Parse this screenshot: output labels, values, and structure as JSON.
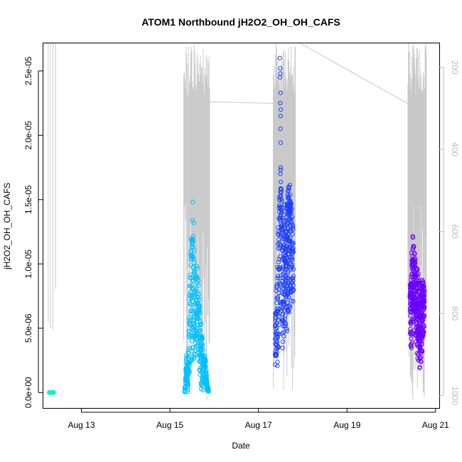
{
  "chart_data": {
    "type": "scatter",
    "title": "ATOM1 Northbound jH2O2_OH_OH_CAFS",
    "xlabel": "Date",
    "ylabel": "jH2O2_OH_OH_CAFS",
    "x_axis": {
      "type": "date",
      "range": [
        "2016-08-12 03:00",
        "2016-08-21 02:00"
      ],
      "ticks": [
        "2016-08-13",
        "2016-08-15",
        "2016-08-17",
        "2016-08-19",
        "2016-08-21"
      ],
      "tick_labels": [
        "Aug 13",
        "Aug 15",
        "Aug 17",
        "Aug 19",
        "Aug 21"
      ]
    },
    "y_axis": {
      "range": [
        -1.2e-06,
        2.72e-05
      ],
      "ticks": [
        0,
        5e-06,
        1e-05,
        1.5e-05,
        2e-05,
        2.5e-05
      ],
      "tick_labels": [
        "0.0e+00",
        "5.0e-06",
        "1.0e-05",
        "1.5e-05",
        "2.0e-05",
        "2.5e-05"
      ]
    },
    "y2_axis": {
      "quantity": "pressure",
      "reversed": true,
      "range": [
        1030,
        140
      ],
      "ticks": [
        200,
        400,
        600,
        800,
        1000
      ],
      "tick_labels": [
        "200",
        "400",
        "600",
        "800",
        "1000"
      ],
      "color": "#bbbbbb"
    },
    "grid": false,
    "legend": "none",
    "marker": "open-circle",
    "series": [
      {
        "color": "#00f5c8",
        "x_range": [
          "2016-08-12 06:30",
          "2016-08-12 09:00"
        ],
        "y_min": 0,
        "y_max": 0,
        "envelope": [
          [
            0,
            0,
            0
          ],
          [
            1,
            0,
            0
          ]
        ],
        "outliers": []
      },
      {
        "color": "#00bfff",
        "x_range": [
          "2016-08-15 08:00",
          "2016-08-15 21:00"
        ],
        "y_min": 0,
        "y_max": 1.48e-05,
        "envelope": [
          [
            0,
            0,
            1e-07
          ],
          [
            0.07,
            1e-06,
            3e-06
          ],
          [
            0.13,
            0,
            2e-06
          ],
          [
            0.2,
            1e-06,
            8e-06
          ],
          [
            0.28,
            2e-06,
            1.25e-05
          ],
          [
            0.35,
            3e-06,
            1.22e-05
          ],
          [
            0.43,
            2e-06,
            1.08e-05
          ],
          [
            0.5,
            3e-06,
            1e-05
          ],
          [
            0.56,
            2e-06,
            9.5e-06
          ],
          [
            0.62,
            1e-06,
            7e-06
          ],
          [
            0.7,
            0,
            5e-06
          ],
          [
            0.78,
            0,
            3e-06
          ],
          [
            0.86,
            1e-06,
            3e-06
          ],
          [
            0.93,
            0,
            1e-06
          ],
          [
            1,
            0,
            2e-07
          ]
        ],
        "outliers": [
          [
            0.34,
            1.48e-05
          ],
          [
            0.32,
            1.34e-05
          ],
          [
            0.38,
            1.32e-05
          ]
        ]
      },
      {
        "color": "#1e40ff",
        "x_range": [
          "2016-08-17 09:00",
          "2016-08-17 19:00"
        ],
        "y_min": 1.75e-06,
        "y_max": 2.6e-05,
        "envelope": [
          [
            0,
            2e-06,
            6e-06
          ],
          [
            0.06,
            2e-06,
            8e-06
          ],
          [
            0.12,
            1.8e-06,
            1e-05
          ],
          [
            0.18,
            3e-06,
            1.3e-05
          ],
          [
            0.25,
            4e-06,
            1.6e-05
          ],
          [
            0.3,
            5e-06,
            2e-05
          ],
          [
            0.35,
            4e-06,
            1.6e-05
          ],
          [
            0.42,
            3e-06,
            1.4e-05
          ],
          [
            0.5,
            5e-06,
            1.5e-05
          ],
          [
            0.57,
            5e-06,
            1.4e-05
          ],
          [
            0.64,
            4e-06,
            1.5e-05
          ],
          [
            0.7,
            6e-06,
            1.6e-05
          ],
          [
            0.78,
            6e-06,
            1.65e-05
          ],
          [
            0.86,
            6.5e-06,
            1.55e-05
          ],
          [
            0.93,
            7e-06,
            1.4e-05
          ],
          [
            1,
            7e-06,
            1.2e-05
          ]
        ],
        "outliers": [
          [
            0.26,
            2.6e-05
          ],
          [
            0.28,
            2.52e-05
          ],
          [
            0.29,
            2.48e-05
          ],
          [
            0.27,
            2.45e-05
          ],
          [
            0.3,
            2.33e-05
          ],
          [
            0.28,
            2.25e-05
          ],
          [
            0.31,
            2.2e-05
          ],
          [
            0.3,
            2.15e-05
          ],
          [
            0.29,
            2.05e-05
          ]
        ]
      },
      {
        "color": "#6a00ff",
        "x_range": [
          "2016-08-20 10:00",
          "2016-08-20 18:00"
        ],
        "y_min": 1.2e-06,
        "y_max": 1.22e-05,
        "envelope": [
          [
            0,
            5e-06,
            9e-06
          ],
          [
            0.06,
            3e-06,
            8e-06
          ],
          [
            0.12,
            2e-06,
            1.1e-05
          ],
          [
            0.2,
            5e-06,
            1.22e-05
          ],
          [
            0.28,
            6e-06,
            1.15e-05
          ],
          [
            0.36,
            4e-06,
            1.05e-05
          ],
          [
            0.45,
            3e-06,
            1e-05
          ],
          [
            0.55,
            2e-06,
            9.5e-06
          ],
          [
            0.65,
            1.5e-06,
            9e-06
          ],
          [
            0.75,
            1.2e-06,
            8e-06
          ],
          [
            0.85,
            3e-06,
            9e-06
          ],
          [
            0.93,
            4e-06,
            8.5e-06
          ],
          [
            1,
            5e-06,
            8e-06
          ]
        ],
        "outliers": []
      }
    ],
    "pressure_trace": {
      "color": "#c8c8c8",
      "segments": [
        {
          "x_range": [
            "2016-08-12 06:00",
            "2016-08-12 10:00"
          ],
          "p_min": 140,
          "p_max": 840,
          "low": [
            {
              "t": 0,
              "p": 820
            },
            {
              "t": 0.3,
              "p": 835
            },
            {
              "t": 0.65,
              "p": 840
            },
            {
              "t": 1,
              "p": 740
            }
          ]
        },
        {
          "x_range": [
            "2016-08-15 07:30",
            "2016-08-15 21:30"
          ],
          "p_min": 140,
          "p_max": 1010,
          "note": "spiky profiles"
        },
        {
          "x_range": [
            "2016-08-17 08:00",
            "2016-08-17 20:00"
          ],
          "p_min": 140,
          "p_max": 1010,
          "note": "spiky profiles"
        },
        {
          "x_range": [
            "2016-08-20 09:00",
            "2016-08-20 19:00"
          ],
          "p_min": 140,
          "p_max": 1010,
          "note": "spiky profiles"
        }
      ],
      "transits": [
        {
          "from": [
            "2016-08-15 21:00",
            284
          ],
          "to": [
            "2016-08-17 08:30",
            288
          ]
        },
        {
          "from": [
            "2016-08-17 22:00",
            140
          ],
          "to": [
            "2016-08-20 09:30",
            290
          ]
        }
      ]
    }
  }
}
